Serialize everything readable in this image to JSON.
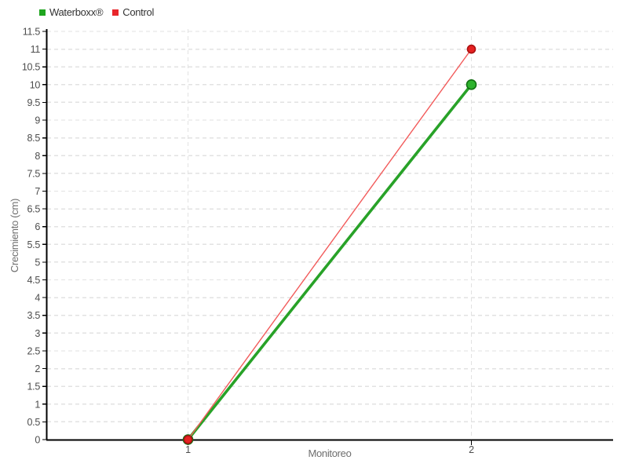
{
  "legend": {
    "items": [
      {
        "label": "Waterboxx®",
        "color": "#1fa51f",
        "swatch": "square"
      },
      {
        "label": "Control",
        "color": "#e8262b",
        "swatch": "square"
      }
    ]
  },
  "chart_data": {
    "type": "line",
    "title": "",
    "xlabel": "Monitoreo",
    "ylabel": "Crecimiento (cm)",
    "x": [
      1,
      2
    ],
    "xtick_labels": [
      "1",
      "2"
    ],
    "ylim": [
      0,
      11.5
    ],
    "ytick_labels": [
      "0",
      "0.5",
      "1",
      "1.5",
      "2",
      "2.5",
      "3",
      "3.5",
      "4",
      "4.5",
      "5",
      "5.5",
      "6",
      "6.5",
      "7",
      "7.5",
      "8",
      "8.5",
      "9",
      "9.5",
      "10",
      "10.5",
      "11",
      "11.5"
    ],
    "grid": "dashed",
    "legend_position": "top-left",
    "series": [
      {
        "name": "Waterboxx®",
        "values": [
          0,
          10
        ],
        "line_color": "#28a228",
        "line_width": 3.6,
        "marker_color": "#2db32d",
        "marker_edge": "#117011",
        "marker_radius": 6
      },
      {
        "name": "Control",
        "values": [
          0,
          11
        ],
        "line_color": "#f25b5b",
        "line_width": 1.4,
        "marker_color": "#e62222",
        "marker_edge": "#aa1111",
        "marker_radius": 5
      }
    ],
    "colors": {
      "background": "#ffffff",
      "grid": "#e2e2e2",
      "axis": "#000000",
      "tick_text": "#4d4d4d",
      "axis_title": "#6e6e6e",
      "legend_text": "#333333"
    }
  }
}
